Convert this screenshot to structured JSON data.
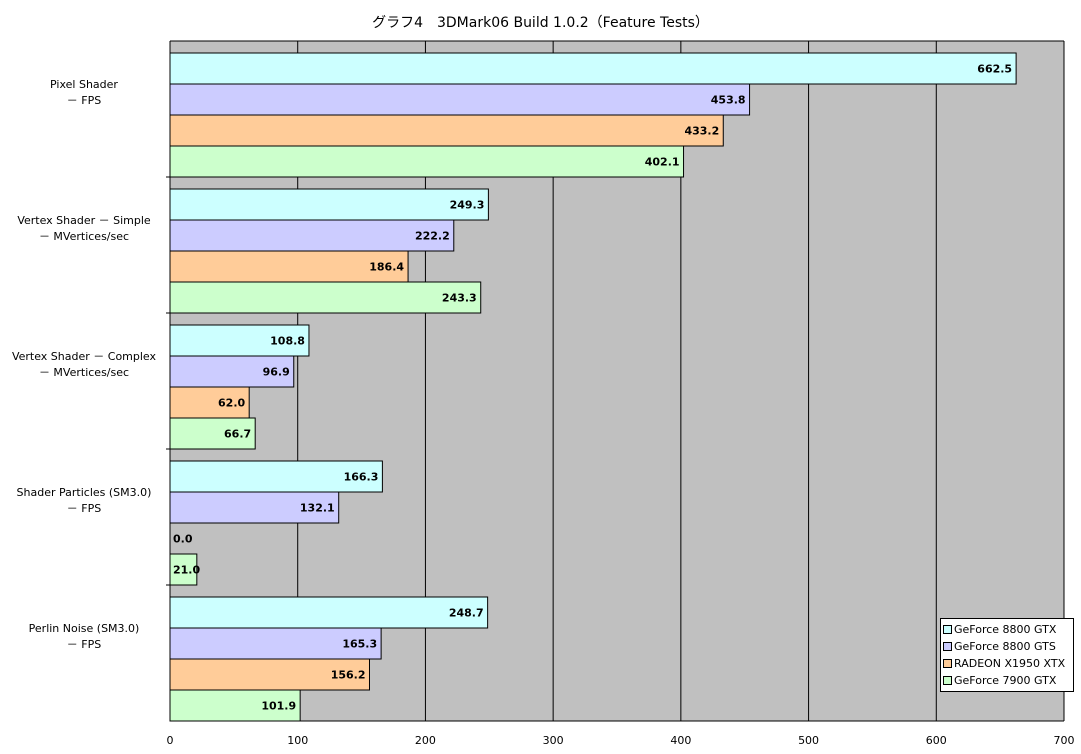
{
  "chart_data": {
    "type": "bar",
    "orientation": "horizontal",
    "title": "グラフ4　3DMark06 Build 1.0.2（Feature Tests）",
    "categories": [
      [
        "Pixel Shader",
        "－ FPS"
      ],
      [
        "Vertex Shader － Simple",
        "－ MVertices/sec"
      ],
      [
        "Vertex Shader － Complex",
        "－ MVertices/sec"
      ],
      [
        "Shader Particles (SM3.0)",
        "－ FPS"
      ],
      [
        "Perlin Noise (SM3.0)",
        "－ FPS"
      ]
    ],
    "series": [
      {
        "name": "GeForce 8800 GTX",
        "color": "#ccffff",
        "values": [
          662.5,
          249.3,
          108.8,
          166.3,
          248.7
        ]
      },
      {
        "name": "GeForce 8800 GTS",
        "color": "#ccccff",
        "values": [
          453.8,
          222.2,
          96.9,
          132.1,
          165.3
        ]
      },
      {
        "name": "RADEON X1950 XTX",
        "color": "#ffcc99",
        "values": [
          433.2,
          186.4,
          62.0,
          0.0,
          156.2
        ]
      },
      {
        "name": "GeForce 7900 GTX",
        "color": "#ccffcc",
        "values": [
          402.1,
          243.3,
          66.7,
          21.0,
          101.9
        ]
      }
    ],
    "xlim": [
      0,
      700
    ],
    "xticks": [
      "0",
      "100",
      "200",
      "300",
      "400",
      "500",
      "600",
      "700"
    ],
    "grid": true,
    "legend_position": "bottom-right",
    "plot_background": "#c0c0c0"
  }
}
